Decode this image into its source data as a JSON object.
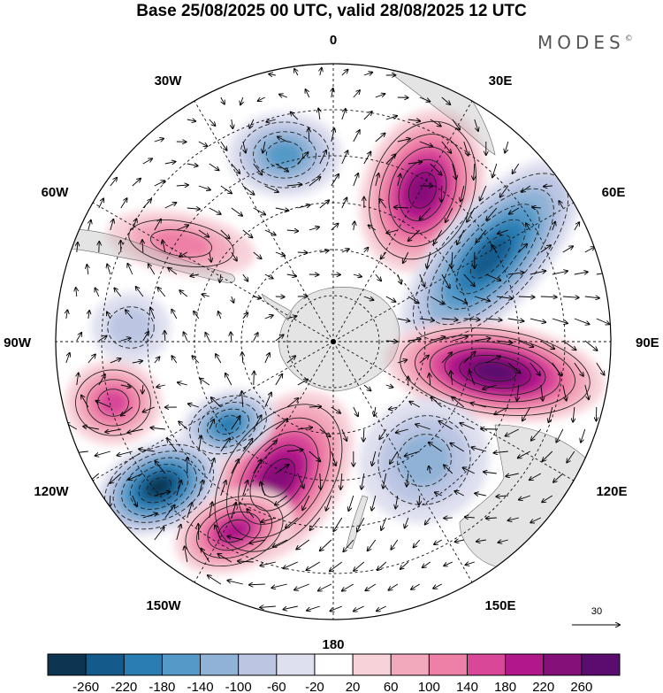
{
  "figure": {
    "title": "Base 25/08/2025 00 UTC, valid 28/08/2025 12 UTC",
    "brand": "MODES",
    "brand_mark": "©",
    "reference_vector_label": "30"
  },
  "longitude_labels": [
    "0",
    "30E",
    "60E",
    "90E",
    "120E",
    "150E",
    "180",
    "150W",
    "120W",
    "90W",
    "60W",
    "30W"
  ],
  "colorbar": {
    "ticks": [
      "-260",
      "-220",
      "-180",
      "-140",
      "-100",
      "-60",
      "-20",
      "20",
      "60",
      "100",
      "140",
      "180",
      "220",
      "260"
    ],
    "colors": [
      "#0b3551",
      "#145b8c",
      "#2a7db2",
      "#5599c8",
      "#8fb2d6",
      "#bcc6e3",
      "#dfe0ef",
      "#ffffff",
      "#f7d2d9",
      "#f3a9bc",
      "#ee7fa6",
      "#d94798",
      "#b1198a",
      "#861079",
      "#5a0d6e"
    ]
  },
  "anomaly_centers": [
    {
      "name": "neg-45w-48s",
      "value": -140
    },
    {
      "name": "pos-20e-45s",
      "value": 220
    },
    {
      "name": "neg-65e-45s",
      "value": -220
    },
    {
      "name": "pos-100e-45s",
      "value": 260
    },
    {
      "name": "neg-130e-60s",
      "value": -120
    },
    {
      "name": "pos-165w-48s",
      "value": 220
    },
    {
      "name": "neg-135w-50s",
      "value": -180
    },
    {
      "name": "neg-120w-35s",
      "value": -260
    },
    {
      "name": "pos-155w-30s",
      "value": 180
    },
    {
      "name": "pos-80w-25s",
      "value": 140
    },
    {
      "name": "pos-70w-50s",
      "value": 100
    },
    {
      "name": "neg-95w-55s",
      "value": -60
    }
  ]
}
